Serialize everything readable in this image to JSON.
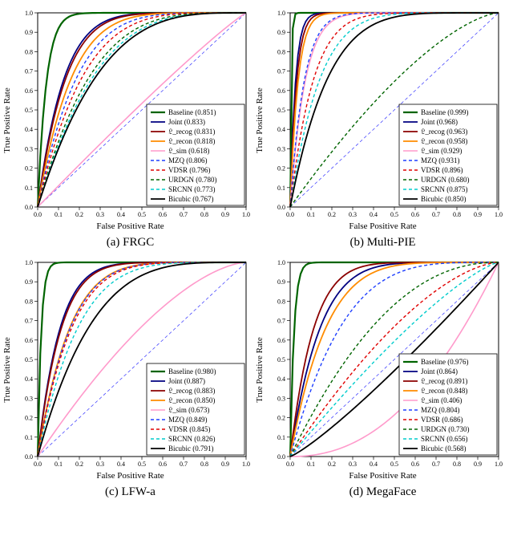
{
  "axis": {
    "xlabel": "False Positive Rate",
    "ylabel": "True Positive Rate",
    "xlim": [
      0,
      1
    ],
    "ylim": [
      0,
      1
    ],
    "tick_step": 0.1,
    "tick_fontsize": 8,
    "label_fontsize": 11,
    "background_color": "#ffffff",
    "grid_color": "#e0e0e0",
    "axis_color": "#000000",
    "diagonal": {
      "color": "#3333ff",
      "dash": "4,3",
      "width": 0.7
    }
  },
  "legend": {
    "fontsize": 9,
    "border_color": "#000000",
    "bg": "#ffffff"
  },
  "panels": [
    {
      "id": "frgc",
      "caption": "(a) FRGC",
      "legend_pos": "lower-right",
      "series": [
        {
          "label": "Baseline",
          "val": "0.851",
          "color": "#006400",
          "width": 2.2,
          "dash": "",
          "k": 24
        },
        {
          "label": "Joint",
          "val": "0.833",
          "color": "#000080",
          "width": 1.8,
          "dash": "",
          "k": 8.0
        },
        {
          "label": "𝔏_recog",
          "val": "0.831",
          "color": "#8b0000",
          "width": 1.8,
          "dash": "",
          "k": 7.5
        },
        {
          "label": "𝔏_recon",
          "val": "0.818",
          "color": "#ff8c00",
          "width": 1.8,
          "dash": "",
          "k": 6.2
        },
        {
          "label": "𝔏_sim",
          "val": "0.618",
          "color": "#ff9acb",
          "width": 1.6,
          "dash": "",
          "k": 1.1
        },
        {
          "label": "MZQ",
          "val": "0.806",
          "color": "#1e3fff",
          "width": 1.4,
          "dash": "4,3",
          "k": 5.3
        },
        {
          "label": "VDSR",
          "val": "0.796",
          "color": "#e00000",
          "width": 1.4,
          "dash": "4,3",
          "k": 4.6
        },
        {
          "label": "URDGN",
          "val": "0.780",
          "color": "#006400",
          "width": 1.4,
          "dash": "4,3",
          "k": 3.9
        },
        {
          "label": "SRCNN",
          "val": "0.773",
          "color": "#00cccc",
          "width": 1.4,
          "dash": "4,3",
          "k": 3.6
        },
        {
          "label": "Bicubic",
          "val": "0.767",
          "color": "#000000",
          "width": 1.8,
          "dash": "",
          "k": 3.4
        }
      ]
    },
    {
      "id": "multipie",
      "caption": "(b) Multi-PIE",
      "legend_pos": "lower-right",
      "series": [
        {
          "label": "Baseline",
          "val": "0.999",
          "color": "#006400",
          "width": 2.2,
          "dash": "",
          "k": 200
        },
        {
          "label": "Joint",
          "val": "0.968",
          "color": "#000080",
          "width": 1.8,
          "dash": "",
          "k": 40
        },
        {
          "label": "𝔏_recog",
          "val": "0.963",
          "color": "#8b0000",
          "width": 1.8,
          "dash": "",
          "k": 33
        },
        {
          "label": "𝔏_recon",
          "val": "0.958",
          "color": "#ff8c00",
          "width": 1.8,
          "dash": "",
          "k": 27
        },
        {
          "label": "𝔏_sim",
          "val": "0.929",
          "color": "#ff9acb",
          "width": 1.6,
          "dash": "",
          "k": 14
        },
        {
          "label": "MZQ",
          "val": "0.931",
          "color": "#1e3fff",
          "width": 1.4,
          "dash": "4,3",
          "k": 15
        },
        {
          "label": "VDSR",
          "val": "0.896",
          "color": "#e00000",
          "width": 1.4,
          "dash": "4,3",
          "k": 9.0
        },
        {
          "label": "URDGN",
          "val": "0.680",
          "color": "#006400",
          "width": 1.4,
          "dash": "4,3",
          "k": 1.5
        },
        {
          "label": "SRCNN",
          "val": "0.875",
          "color": "#00cccc",
          "width": 1.4,
          "dash": "4,3",
          "k": 7.0
        },
        {
          "label": "Bicubic",
          "val": "0.850",
          "color": "#000000",
          "width": 1.8,
          "dash": "",
          "k": 5.5
        }
      ]
    },
    {
      "id": "lfwa",
      "caption": "(c) LFW-a",
      "legend_pos": "lower-right",
      "series": [
        {
          "label": "Baseline",
          "val": "0.980",
          "color": "#006400",
          "width": 2.2,
          "dash": "",
          "k": 60
        },
        {
          "label": "Joint",
          "val": "0.887",
          "color": "#000080",
          "width": 1.8,
          "dash": "",
          "k": 9.5
        },
        {
          "label": "𝔏_recog",
          "val": "0.883",
          "color": "#8b0000",
          "width": 1.8,
          "dash": "",
          "k": 9.0
        },
        {
          "label": "𝔏_recon",
          "val": "0.850",
          "color": "#ff8c00",
          "width": 1.8,
          "dash": "",
          "k": 6.5
        },
        {
          "label": "𝔏_sim",
          "val": "0.673",
          "color": "#ff9acb",
          "width": 1.6,
          "dash": "",
          "k": 1.6
        },
        {
          "label": "MZQ",
          "val": "0.849",
          "color": "#1e3fff",
          "width": 1.4,
          "dash": "4,3",
          "k": 6.4
        },
        {
          "label": "VDSR",
          "val": "0.845",
          "color": "#e00000",
          "width": 1.4,
          "dash": "4,3",
          "k": 6.1
        },
        {
          "label": "SRCNN",
          "val": "0.826",
          "color": "#00cccc",
          "width": 1.4,
          "dash": "4,3",
          "k": 5.1
        },
        {
          "label": "Bicubic",
          "val": "0.791",
          "color": "#000000",
          "width": 1.8,
          "dash": "",
          "k": 3.9
        }
      ]
    },
    {
      "id": "megaface",
      "caption": "(d) MegaFace",
      "legend_pos": "lower-right",
      "series": [
        {
          "label": "Baseline",
          "val": "0.976",
          "color": "#006400",
          "width": 2.2,
          "dash": "",
          "k": 55
        },
        {
          "label": "Joint",
          "val": "0.864",
          "color": "#000080",
          "width": 1.8,
          "dash": "",
          "k": 7.0
        },
        {
          "label": "𝔏_recog",
          "val": "0.891",
          "color": "#8b0000",
          "width": 1.8,
          "dash": "",
          "k": 9.0
        },
        {
          "label": "𝔏_recon",
          "val": "0.848",
          "color": "#ff8c00",
          "width": 1.8,
          "dash": "",
          "k": 5.8
        },
        {
          "label": "𝔏_sim",
          "val": "0.406",
          "color": "#ff9acb",
          "width": 1.6,
          "dash": "",
          "k": 0.45
        },
        {
          "label": "MZQ",
          "val": "0.804",
          "color": "#1e3fff",
          "width": 1.4,
          "dash": "4,3",
          "k": 4.0
        },
        {
          "label": "VDSR",
          "val": "0.686",
          "color": "#e00000",
          "width": 1.4,
          "dash": "4,3",
          "k": 1.6
        },
        {
          "label": "URDGN",
          "val": "0.730",
          "color": "#006400",
          "width": 1.4,
          "dash": "4,3",
          "k": 2.2
        },
        {
          "label": "SRCNN",
          "val": "0.656",
          "color": "#00cccc",
          "width": 1.4,
          "dash": "4,3",
          "k": 1.3
        },
        {
          "label": "Bicubic",
          "val": "0.568",
          "color": "#000000",
          "width": 1.8,
          "dash": "",
          "k": 0.85
        }
      ]
    }
  ]
}
